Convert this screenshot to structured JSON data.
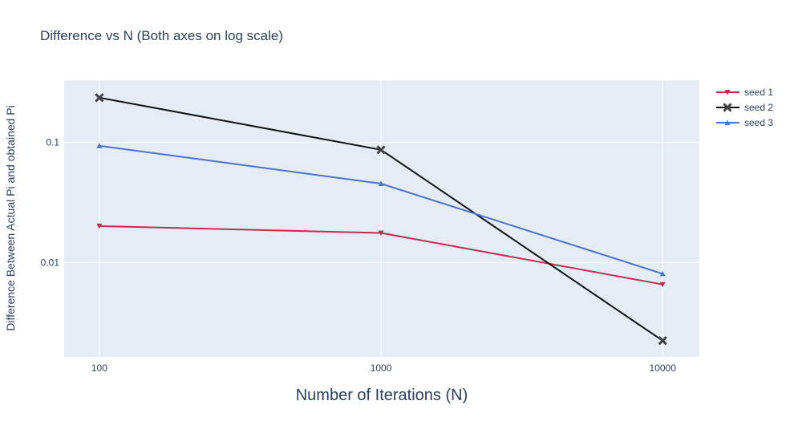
{
  "chart_data": {
    "type": "line",
    "title": "Difference vs N (Both axes on log scale)",
    "xlabel": "Number of Iterations (N)",
    "ylabel": "Difference Between Actual Pi and obtained Pi",
    "x": [
      100,
      1000,
      10000
    ],
    "x_tick_labels": [
      "100",
      "1000",
      "10000"
    ],
    "y_tick_values": [
      0.01,
      0.1
    ],
    "y_tick_labels": [
      "0.01",
      "0.1"
    ],
    "x_scale": "log",
    "y_scale": "log",
    "xlim": [
      75,
      13500
    ],
    "ylim": [
      0.00165,
      0.33
    ],
    "grid": true,
    "plot_background": "#e5ecf6",
    "legend_position": "top-right",
    "series": [
      {
        "name": "seed 1",
        "color": "#c72c4f",
        "marker": "triangle-down",
        "values": [
          0.0202,
          0.0177,
          0.0066
        ]
      },
      {
        "name": "seed 2",
        "color": "#111111",
        "marker": "x",
        "values": [
          0.236,
          0.087,
          0.00225
        ]
      },
      {
        "name": "seed 3",
        "color": "#4a73cf",
        "marker": "triangle-up",
        "values": [
          0.094,
          0.0455,
          0.0081
        ]
      }
    ]
  }
}
